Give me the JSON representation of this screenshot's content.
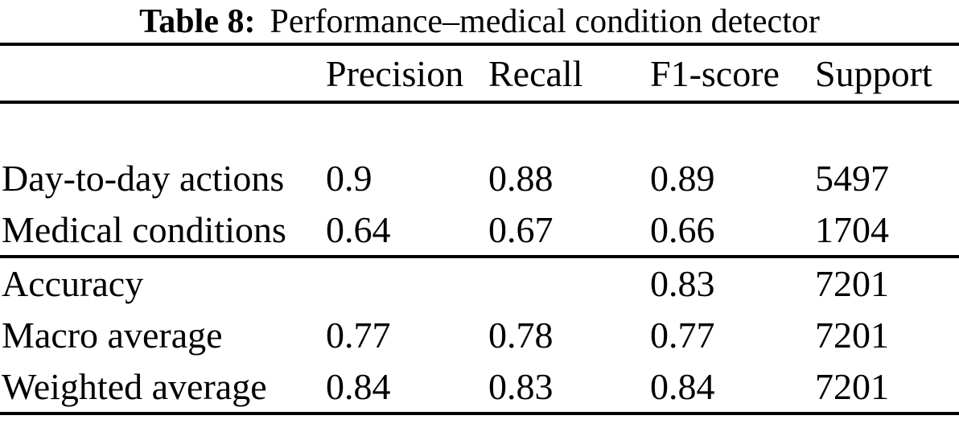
{
  "caption": {
    "label": "Table 8:",
    "text": "Performance–medical condition detector"
  },
  "table": {
    "headers": {
      "metric": "",
      "precision": "Precision",
      "recall": "Recall",
      "f1": "F1-score",
      "support": "Support"
    },
    "rows": [
      {
        "label": "Day-to-day actions",
        "precision": "0.9",
        "recall": "0.88",
        "f1": "0.89",
        "support": "5497"
      },
      {
        "label": "Medical conditions",
        "precision": "0.64",
        "recall": "0.67",
        "f1": "0.66",
        "support": "1704"
      },
      {
        "label": "Accuracy",
        "precision": "",
        "recall": "",
        "f1": "0.83",
        "support": "7201"
      },
      {
        "label": "Macro average",
        "precision": "0.77",
        "recall": "0.78",
        "f1": "0.77",
        "support": "7201"
      },
      {
        "label": "Weighted average",
        "precision": "0.84",
        "recall": "0.83",
        "f1": "0.84",
        "support": "7201"
      }
    ]
  },
  "colors": {
    "text": "#000000",
    "background": "#ffffff",
    "rule": "#000000"
  }
}
